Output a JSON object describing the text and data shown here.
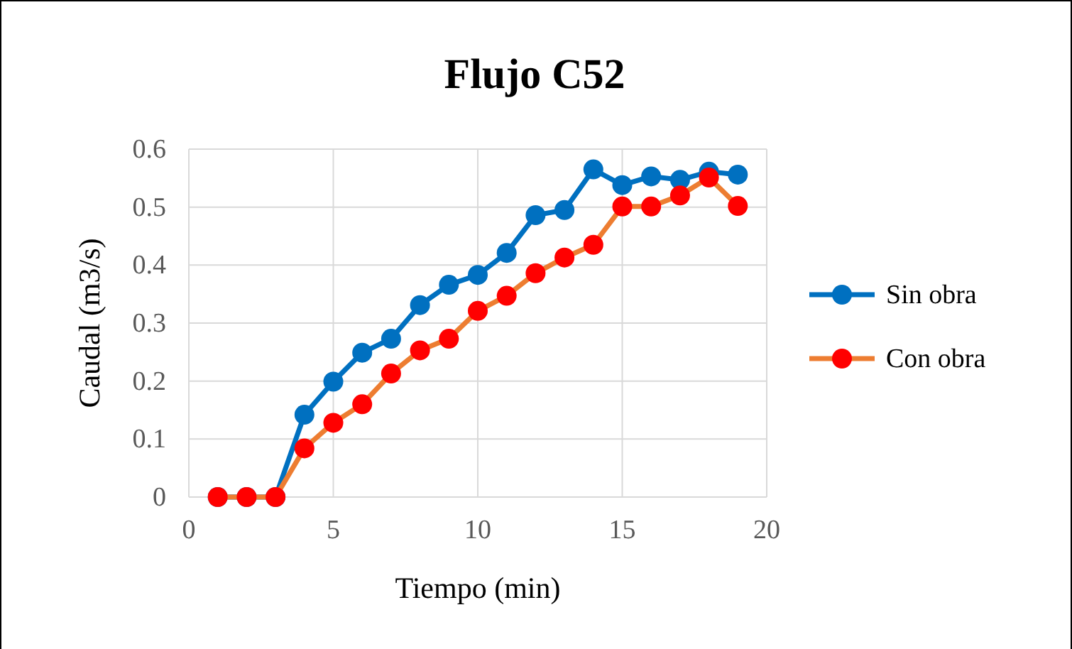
{
  "chart_data": {
    "type": "line",
    "title": "Flujo C52",
    "xlabel": "Tiempo (min)",
    "ylabel": "Caudal (m3/s)",
    "x": [
      1,
      2,
      3,
      4,
      5,
      6,
      7,
      8,
      9,
      10,
      11,
      12,
      13,
      14,
      15,
      16,
      17,
      18,
      19
    ],
    "series": [
      {
        "name": "Sin obra",
        "color": "#0070c0",
        "values": [
          0,
          0,
          0,
          0.142,
          0.199,
          0.249,
          0.273,
          0.331,
          0.366,
          0.383,
          0.421,
          0.486,
          0.495,
          0.565,
          0.538,
          0.553,
          0.547,
          0.561,
          0.556
        ]
      },
      {
        "name": "Con obra",
        "color": "#ed7d31",
        "colors": [
          "#ff0000",
          "#ff0000",
          "#ff0000",
          "#ff0000",
          "#ff0000",
          "#ff0000",
          "#ff0000",
          "#ff0000",
          "#ff0000",
          "#ff0000",
          "#ff0000",
          "#ff0000",
          "#ff0000",
          "#ff0000",
          "#ff0000",
          "#ff0000",
          "#ff0000",
          "#ff0000",
          "#ff0000"
        ],
        "values": [
          0,
          0,
          0,
          0.084,
          0.128,
          0.16,
          0.213,
          0.253,
          0.273,
          0.321,
          0.347,
          0.386,
          0.413,
          0.435,
          0.501,
          0.501,
          0.52,
          0.551,
          0.502
        ]
      }
    ],
    "xlim": [
      0,
      20
    ],
    "xticks": [
      0,
      5,
      10,
      15,
      20
    ],
    "ylim": [
      0,
      0.6
    ],
    "yticks": [
      0,
      0.1,
      0.2,
      0.3,
      0.4,
      0.5,
      0.6
    ],
    "grid": true,
    "legend": "right",
    "marker": "circle",
    "line_style": "solid"
  }
}
